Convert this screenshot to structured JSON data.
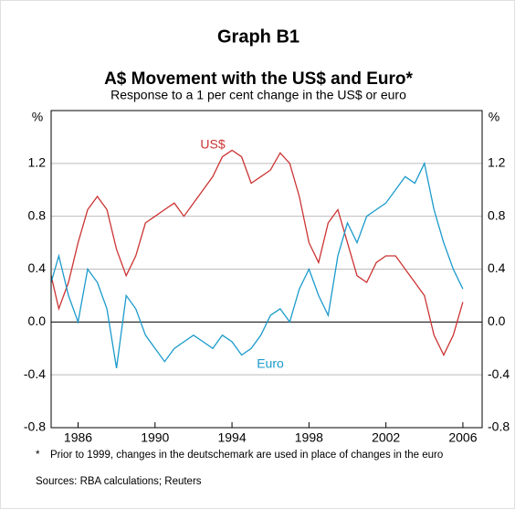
{
  "chart_data": {
    "type": "line",
    "title": "Graph B1",
    "subtitle": "A$ Movement with the US$ and Euro*",
    "description": "Response to a 1 per cent change in the US$ or euro",
    "y_unit": "%",
    "x": [
      1984.6,
      1985,
      1985.5,
      1986,
      1986.5,
      1987,
      1987.5,
      1988,
      1988.5,
      1989,
      1989.5,
      1990,
      1990.5,
      1991,
      1991.5,
      1992,
      1992.5,
      1993,
      1993.5,
      1994,
      1994.5,
      1995,
      1995.5,
      1996,
      1996.5,
      1997,
      1997.5,
      1998,
      1998.5,
      1999,
      1999.5,
      2000,
      2000.5,
      2001,
      2001.5,
      2002,
      2002.5,
      2003,
      2003.5,
      2004,
      2004.5,
      2005,
      2005.5,
      2006
    ],
    "series": [
      {
        "name": "US$",
        "color": "#cc3333",
        "values": [
          0.35,
          0.1,
          0.3,
          0.6,
          0.85,
          0.95,
          0.85,
          0.55,
          0.35,
          0.5,
          0.75,
          0.8,
          0.85,
          0.9,
          0.8,
          0.9,
          1.0,
          1.1,
          1.25,
          1.3,
          1.25,
          1.05,
          1.1,
          1.15,
          1.28,
          1.2,
          0.95,
          0.6,
          0.45,
          0.75,
          0.85,
          0.6,
          0.35,
          0.3,
          0.45,
          0.5,
          0.5,
          0.4,
          0.3,
          0.2,
          -0.1,
          -0.25,
          -0.1,
          0.15
        ]
      },
      {
        "name": "Euro",
        "color": "#1a9acb",
        "values": [
          0.3,
          0.5,
          0.2,
          0.0,
          0.4,
          0.3,
          0.1,
          -0.35,
          0.2,
          0.1,
          -0.1,
          -0.2,
          -0.3,
          -0.2,
          -0.15,
          -0.1,
          -0.15,
          -0.2,
          -0.1,
          -0.15,
          -0.25,
          -0.2,
          -0.1,
          0.05,
          0.1,
          0.0,
          0.25,
          0.4,
          0.2,
          0.05,
          0.5,
          0.75,
          0.6,
          0.8,
          0.85,
          0.9,
          1.0,
          1.1,
          1.05,
          1.2,
          0.85,
          0.6,
          0.4,
          0.25
        ]
      }
    ],
    "xlim": [
      1984.6,
      2007.0
    ],
    "xticks": [
      1986,
      1990,
      1994,
      1998,
      2002,
      2006
    ],
    "ylim": [
      -0.8,
      1.6
    ],
    "yticks": [
      -0.8,
      -0.4,
      {
        "value": 0,
        "label": "0.0"
      },
      0.4,
      0.8,
      1.2
    ],
    "grid": true,
    "footnote_marker": "*",
    "footnote": "Prior to 1999, changes in the deutschemark are used in place of changes in the euro",
    "sources": "Sources: RBA calculations; Reuters"
  }
}
